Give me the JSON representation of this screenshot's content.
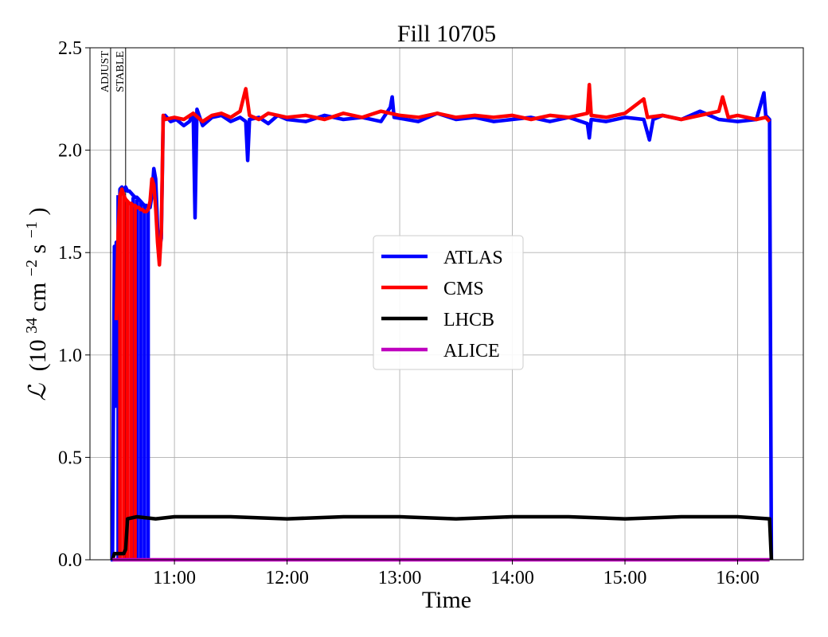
{
  "chart_data": {
    "type": "line",
    "title": "Fill 10705",
    "xlabel": "Time",
    "ylabel": "ℒ (10^34 cm^−2s^−1)",
    "ylabel_parts": {
      "symbol": "ℒ",
      "open": "(10",
      "exp34": "34",
      "cm": " cm",
      "expm2": "−2",
      "s": "s",
      "expm1": "−1",
      "close": ")"
    },
    "xlim": [
      "10:15",
      "16:35"
    ],
    "ylim": [
      0.0,
      2.5
    ],
    "x_ticks": [
      "11:00",
      "12:00",
      "13:00",
      "14:00",
      "15:00",
      "16:00"
    ],
    "y_ticks": [
      "0.0",
      "0.5",
      "1.0",
      "1.5",
      "2.0",
      "2.5"
    ],
    "grid": true,
    "legend_position": "center",
    "markers": [
      {
        "label": "ADJUST",
        "x": "10:26"
      },
      {
        "label": "STABLE",
        "x": "10:34"
      }
    ],
    "series": [
      {
        "name": "ATLAS",
        "color": "#0000ff",
        "points": [
          [
            "10:26",
            0.0
          ],
          [
            "10:27",
            0.0
          ],
          [
            "10:28",
            1.53
          ],
          [
            "10:28.5",
            0.75
          ],
          [
            "10:29",
            1.55
          ],
          [
            "10:30",
            1.26
          ],
          [
            "10:31",
            1.81
          ],
          [
            "10:32",
            1.82
          ],
          [
            "10:33",
            1.8
          ],
          [
            "10:34",
            1.82
          ],
          [
            "10:35",
            1.8
          ],
          [
            "10:36",
            1.8
          ],
          [
            "10:37",
            1.79
          ],
          [
            "10:38",
            1.78
          ],
          [
            "10:39",
            1.77
          ],
          [
            "10:40",
            1.77
          ],
          [
            "10:41",
            1.76
          ],
          [
            "10:42",
            1.75
          ],
          [
            "10:43",
            1.74
          ],
          [
            "10:44",
            1.73
          ],
          [
            "10:45",
            1.73
          ],
          [
            "10:46",
            1.72
          ],
          [
            "10:47",
            1.72
          ],
          [
            "10:48",
            1.78
          ],
          [
            "10:49",
            1.91
          ],
          [
            "10:50",
            1.86
          ],
          [
            "10:51",
            1.62
          ],
          [
            "10:52",
            1.52
          ],
          [
            "10:53",
            1.57
          ],
          [
            "10:54",
            2.16
          ],
          [
            "10:55",
            2.17
          ],
          [
            "10:58",
            2.14
          ],
          [
            "11:01",
            2.15
          ],
          [
            "11:05",
            2.12
          ],
          [
            "11:08",
            2.14
          ],
          [
            "11:10",
            2.18
          ],
          [
            "11:11",
            1.67
          ],
          [
            "11:12",
            2.2
          ],
          [
            "11:15",
            2.12
          ],
          [
            "11:20",
            2.16
          ],
          [
            "11:25",
            2.17
          ],
          [
            "11:30",
            2.14
          ],
          [
            "11:35",
            2.16
          ],
          [
            "11:38",
            2.14
          ],
          [
            "11:39",
            1.95
          ],
          [
            "11:40",
            2.15
          ],
          [
            "11:45",
            2.16
          ],
          [
            "11:50",
            2.13
          ],
          [
            "11:55",
            2.17
          ],
          [
            "12:00",
            2.15
          ],
          [
            "12:10",
            2.14
          ],
          [
            "12:20",
            2.17
          ],
          [
            "12:30",
            2.15
          ],
          [
            "12:40",
            2.16
          ],
          [
            "12:50",
            2.14
          ],
          [
            "12:55",
            2.21
          ],
          [
            "12:56",
            2.26
          ],
          [
            "12:57",
            2.16
          ],
          [
            "13:10",
            2.14
          ],
          [
            "13:20",
            2.18
          ],
          [
            "13:30",
            2.15
          ],
          [
            "13:40",
            2.16
          ],
          [
            "13:50",
            2.14
          ],
          [
            "14:00",
            2.15
          ],
          [
            "14:10",
            2.16
          ],
          [
            "14:20",
            2.14
          ],
          [
            "14:30",
            2.16
          ],
          [
            "14:40",
            2.13
          ],
          [
            "14:41",
            2.06
          ],
          [
            "14:42",
            2.15
          ],
          [
            "14:50",
            2.14
          ],
          [
            "15:00",
            2.16
          ],
          [
            "15:10",
            2.15
          ],
          [
            "15:13",
            2.05
          ],
          [
            "15:15",
            2.15
          ],
          [
            "15:20",
            2.17
          ],
          [
            "15:30",
            2.15
          ],
          [
            "15:40",
            2.19
          ],
          [
            "15:50",
            2.15
          ],
          [
            "16:00",
            2.14
          ],
          [
            "16:10",
            2.15
          ],
          [
            "16:14",
            2.28
          ],
          [
            "16:15",
            2.17
          ],
          [
            "16:17",
            2.15
          ],
          [
            "16:18",
            0.0
          ]
        ],
        "spikes": [
          [
            "10:30",
            1.78,
            0.0
          ],
          [
            "10:35",
            1.75,
            0.0
          ],
          [
            "10:38",
            1.77,
            0.0
          ],
          [
            "10:40",
            1.76,
            0.0
          ],
          [
            "10:42",
            1.75,
            0.0
          ],
          [
            "10:44",
            1.73,
            0.0
          ],
          [
            "10:46",
            1.72,
            0.0
          ]
        ]
      },
      {
        "name": "CMS",
        "color": "#ff0000",
        "points": [
          [
            "10:29",
            1.17
          ],
          [
            "10:30",
            1.6
          ],
          [
            "10:31",
            1.78
          ],
          [
            "10:32",
            1.81
          ],
          [
            "10:33",
            1.78
          ],
          [
            "10:34",
            1.76
          ],
          [
            "10:35",
            1.75
          ],
          [
            "10:36",
            1.74
          ],
          [
            "10:37",
            1.74
          ],
          [
            "10:38",
            1.73
          ],
          [
            "10:39",
            1.73
          ],
          [
            "10:40",
            1.72
          ],
          [
            "10:41",
            1.72
          ],
          [
            "10:42",
            1.71
          ],
          [
            "10:43",
            1.71
          ],
          [
            "10:44",
            1.7
          ],
          [
            "10:45",
            1.7
          ],
          [
            "10:46",
            1.71
          ],
          [
            "10:47",
            1.75
          ],
          [
            "10:48",
            1.86
          ],
          [
            "10:49",
            1.83
          ],
          [
            "10:50",
            1.72
          ],
          [
            "10:51",
            1.55
          ],
          [
            "10:52",
            1.44
          ],
          [
            "10:53",
            1.6
          ],
          [
            "10:54",
            2.17
          ],
          [
            "10:55",
            2.15
          ],
          [
            "11:00",
            2.16
          ],
          [
            "11:05",
            2.15
          ],
          [
            "11:10",
            2.18
          ],
          [
            "11:15",
            2.14
          ],
          [
            "11:20",
            2.17
          ],
          [
            "11:25",
            2.18
          ],
          [
            "11:30",
            2.16
          ],
          [
            "11:35",
            2.19
          ],
          [
            "11:38",
            2.3
          ],
          [
            "11:40",
            2.17
          ],
          [
            "11:45",
            2.15
          ],
          [
            "11:50",
            2.18
          ],
          [
            "12:00",
            2.16
          ],
          [
            "12:10",
            2.17
          ],
          [
            "12:20",
            2.15
          ],
          [
            "12:30",
            2.18
          ],
          [
            "12:40",
            2.16
          ],
          [
            "12:50",
            2.19
          ],
          [
            "13:00",
            2.17
          ],
          [
            "13:10",
            2.16
          ],
          [
            "13:20",
            2.18
          ],
          [
            "13:30",
            2.16
          ],
          [
            "13:40",
            2.17
          ],
          [
            "13:50",
            2.16
          ],
          [
            "14:00",
            2.17
          ],
          [
            "14:10",
            2.15
          ],
          [
            "14:20",
            2.17
          ],
          [
            "14:30",
            2.16
          ],
          [
            "14:40",
            2.18
          ],
          [
            "14:41",
            2.32
          ],
          [
            "14:42",
            2.17
          ],
          [
            "14:50",
            2.16
          ],
          [
            "15:00",
            2.18
          ],
          [
            "15:10",
            2.25
          ],
          [
            "15:12",
            2.16
          ],
          [
            "15:20",
            2.17
          ],
          [
            "15:30",
            2.15
          ],
          [
            "15:40",
            2.17
          ],
          [
            "15:50",
            2.19
          ],
          [
            "15:52",
            2.26
          ],
          [
            "15:55",
            2.16
          ],
          [
            "16:00",
            2.17
          ],
          [
            "16:10",
            2.15
          ],
          [
            "16:15",
            2.16
          ],
          [
            "16:17",
            2.14
          ]
        ],
        "spikes": [
          [
            "10:31",
            1.78,
            0.0
          ],
          [
            "10:33",
            1.78,
            0.0
          ],
          [
            "10:35",
            1.75,
            0.0
          ],
          [
            "10:37",
            1.74,
            0.0
          ],
          [
            "10:39",
            1.73,
            0.0
          ]
        ]
      },
      {
        "name": "LHCB",
        "color": "#000000",
        "points": [
          [
            "10:27",
            0.0
          ],
          [
            "10:28",
            0.03
          ],
          [
            "10:33",
            0.03
          ],
          [
            "10:34",
            0.05
          ],
          [
            "10:35",
            0.2
          ],
          [
            "10:40",
            0.21
          ],
          [
            "10:50",
            0.2
          ],
          [
            "11:00",
            0.21
          ],
          [
            "11:30",
            0.21
          ],
          [
            "12:00",
            0.2
          ],
          [
            "12:30",
            0.21
          ],
          [
            "13:00",
            0.21
          ],
          [
            "13:30",
            0.2
          ],
          [
            "14:00",
            0.21
          ],
          [
            "14:30",
            0.21
          ],
          [
            "15:00",
            0.2
          ],
          [
            "15:30",
            0.21
          ],
          [
            "16:00",
            0.21
          ],
          [
            "16:17",
            0.2
          ],
          [
            "16:18",
            0.0
          ]
        ],
        "spikes": []
      },
      {
        "name": "ALICE",
        "color": "#bf00bf",
        "points": [
          [
            "10:27",
            0.0
          ],
          [
            "16:17",
            0.0
          ]
        ],
        "spikes": []
      }
    ]
  }
}
